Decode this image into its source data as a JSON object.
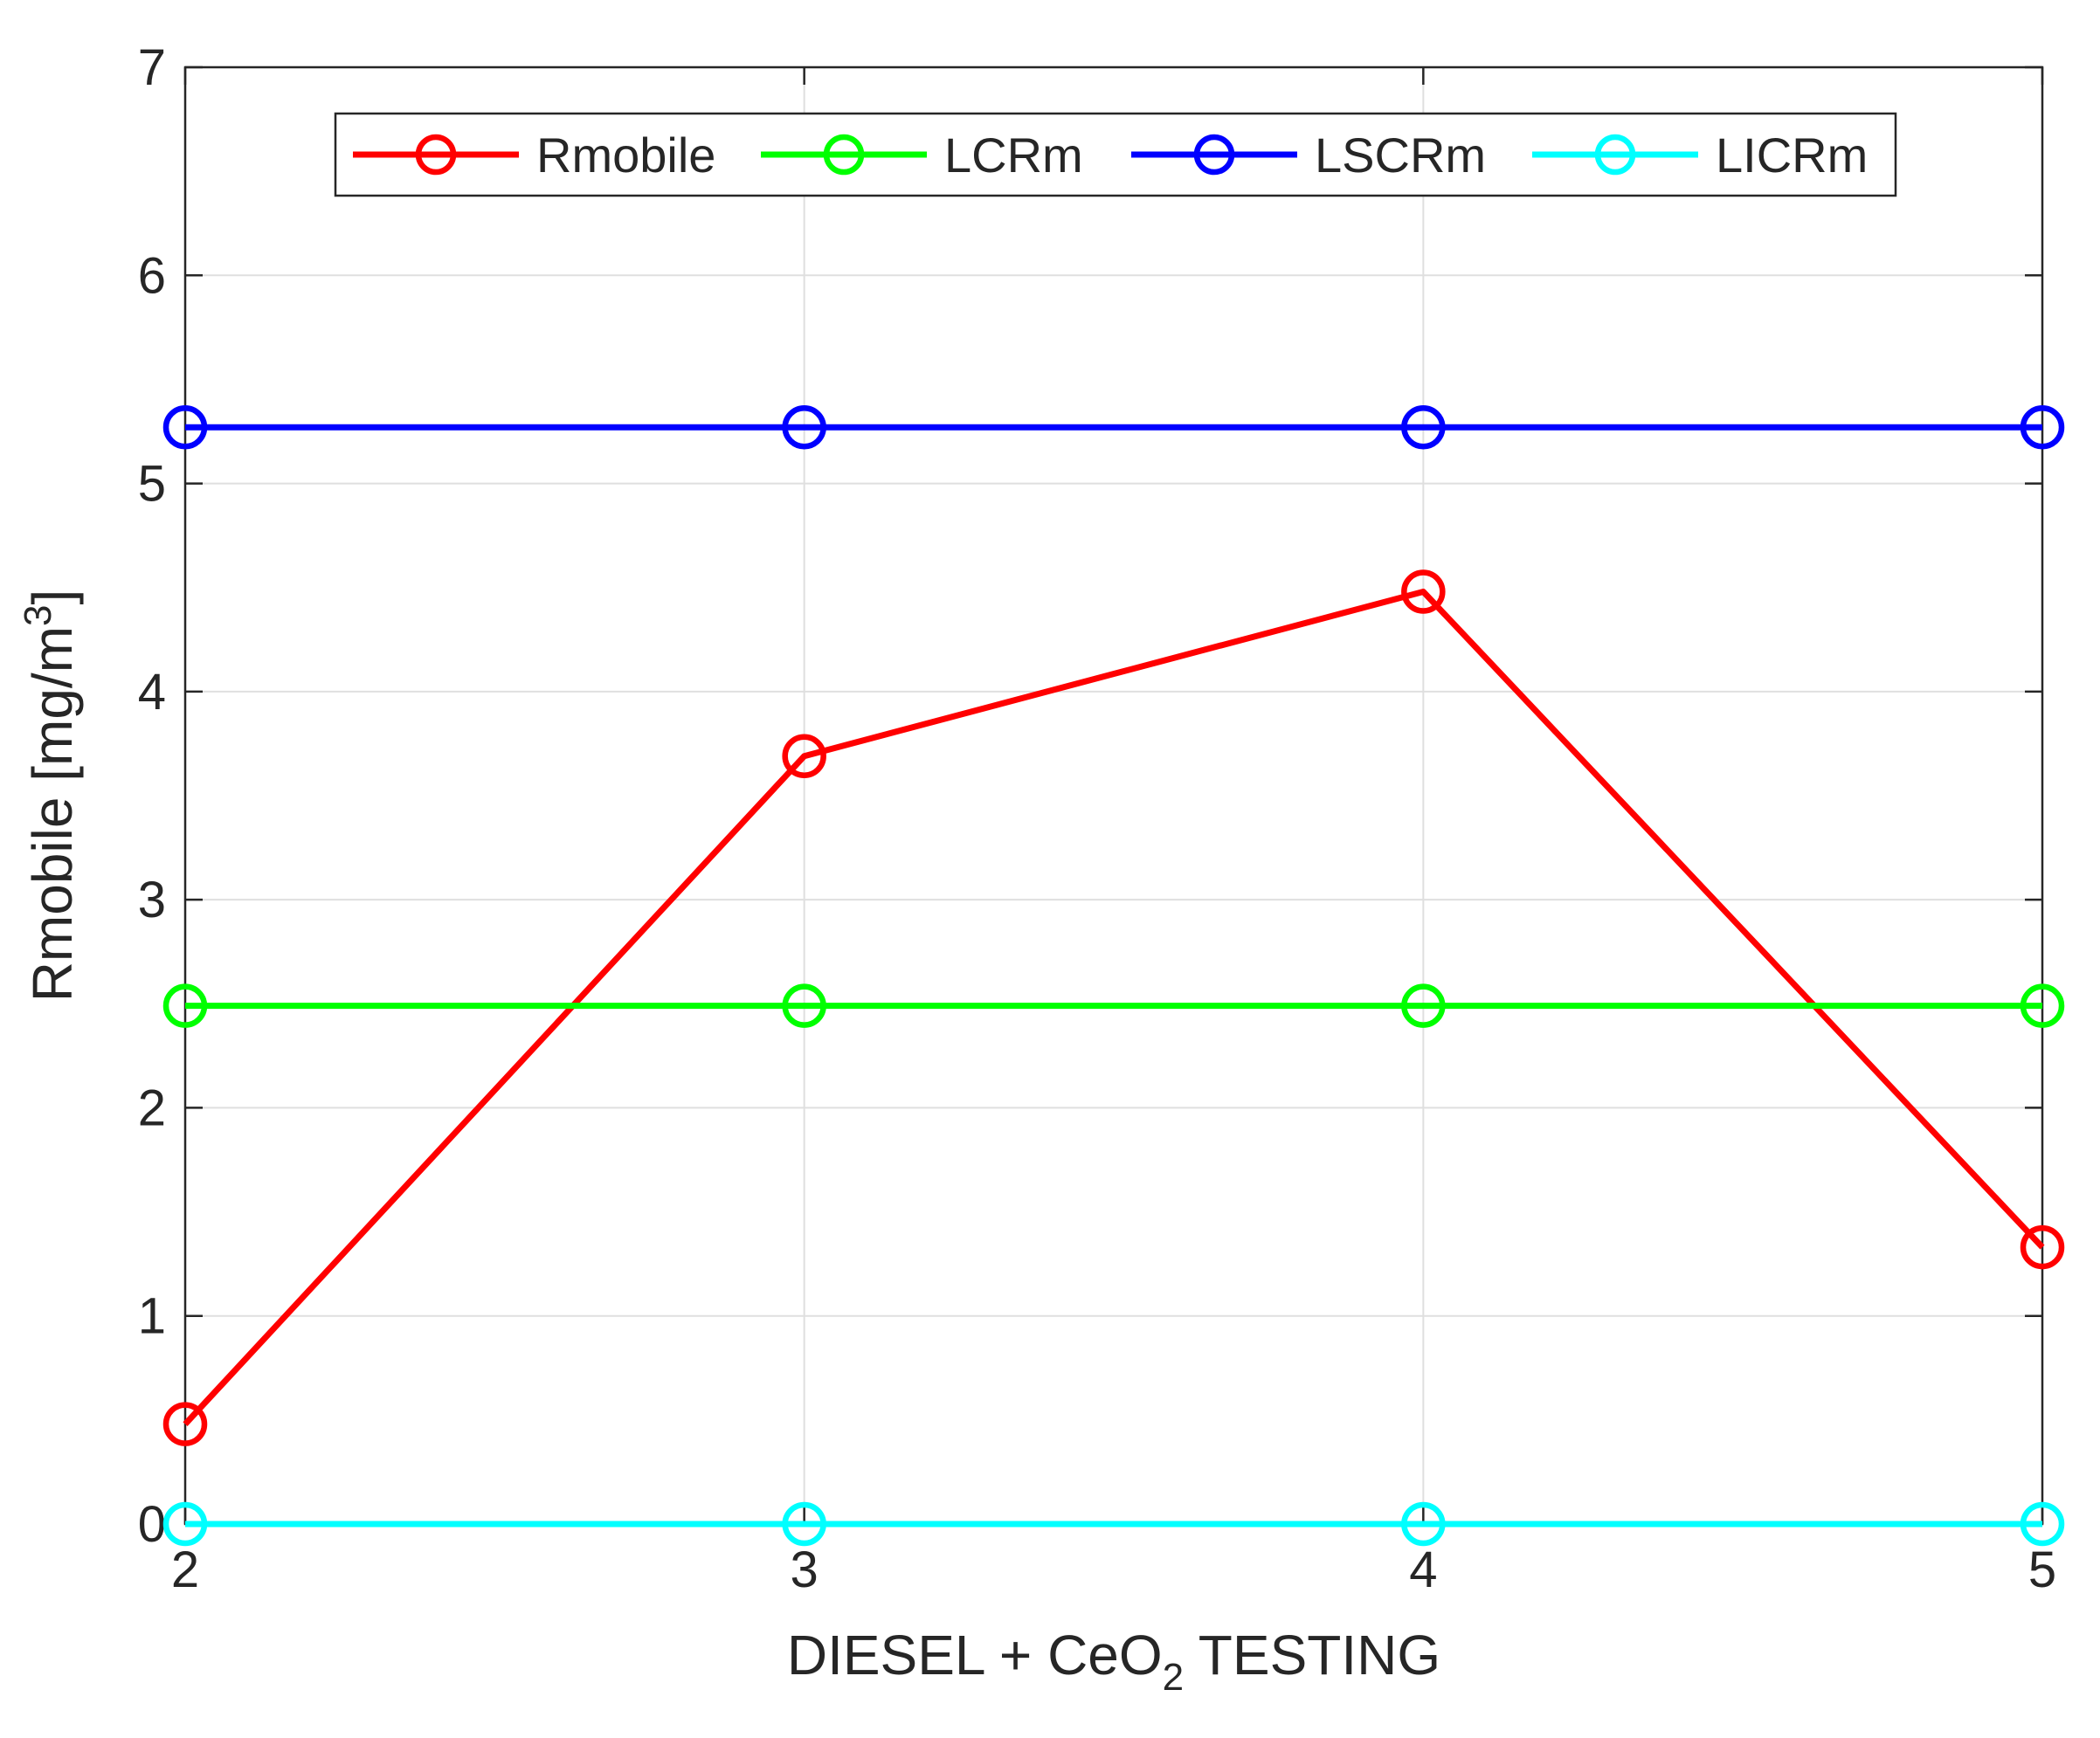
{
  "chart_data": {
    "type": "line",
    "x": [
      2,
      3,
      4,
      5
    ],
    "xlim": [
      2,
      5
    ],
    "ylim": [
      0,
      7
    ],
    "x_ticks": [
      "2",
      "3",
      "4",
      "5"
    ],
    "y_ticks": [
      "0",
      "1",
      "2",
      "3",
      "4",
      "5",
      "6",
      "7"
    ],
    "xlabel": {
      "prefix": "DIESEL + CeO",
      "sub": "2",
      "suffix": " TESTING"
    },
    "ylabel": {
      "main": "Rmobile [mg/m",
      "sup": "3",
      "close": "]"
    },
    "grid": true,
    "legend_position": "top-center",
    "series": [
      {
        "name": "Rmobile",
        "color": "#ff0000",
        "marker": "circle",
        "values": [
          0.48,
          3.69,
          4.48,
          1.33
        ]
      },
      {
        "name": "LCRm",
        "color": "#00ff00",
        "marker": "circle",
        "values": [
          2.49,
          2.49,
          2.49,
          2.49
        ]
      },
      {
        "name": "LSCRm",
        "color": "#0000ff",
        "marker": "circle",
        "values": [
          5.27,
          5.27,
          5.27,
          5.27
        ]
      },
      {
        "name": "LICRm",
        "color": "#00ffff",
        "marker": "circle",
        "values": [
          0,
          0,
          0,
          0
        ]
      }
    ]
  }
}
